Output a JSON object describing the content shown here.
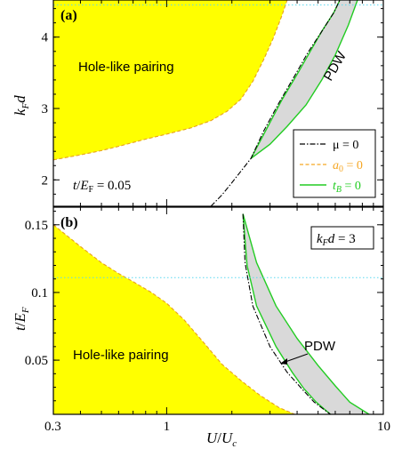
{
  "colors": {
    "hole_fill": "#ffff00",
    "hole_edge": "#e8a020",
    "pdw_fill": "#d9d9d9",
    "tB_line": "#22cc22",
    "mu_line": "#000000",
    "a0_line": "#f5a623",
    "dotted_ref": "#5ad8f0"
  },
  "chart_data": [
    {
      "type": "area",
      "panel_label": "(a)",
      "ylabel": "k_F d",
      "xlabel": "",
      "xscale": "log",
      "xlim": [
        0.3,
        10
      ],
      "ylim": [
        1.63,
        4.52
      ],
      "yticks": [
        "2",
        "3",
        "4"
      ],
      "ytick_values": [
        2,
        3,
        4
      ],
      "grid": false,
      "reference_line": {
        "y": 4.45,
        "style": "dotted"
      },
      "param_label": "t/E_F = 0.05",
      "regions": [
        {
          "name": "Hole-like pairing",
          "x": [
            0.3,
            0.4,
            0.5,
            0.6,
            0.8,
            1.0,
            1.3,
            1.6,
            1.9,
            2.2,
            2.5,
            2.8,
            3.1,
            3.4,
            3.6
          ],
          "y": [
            2.28,
            2.35,
            2.41,
            2.47,
            2.57,
            2.64,
            2.73,
            2.83,
            2.96,
            3.13,
            3.38,
            3.68,
            3.98,
            4.3,
            4.52
          ]
        },
        {
          "name": "PDW",
          "upper_x": [
            2.45,
            2.9,
            3.4,
            4.0,
            4.6,
            5.2,
            5.9,
            6.3
          ],
          "upper_y": [
            2.3,
            2.72,
            3.12,
            3.48,
            3.8,
            4.08,
            4.34,
            4.52
          ],
          "lower_x": [
            2.45,
            3.0,
            3.6,
            4.4,
            5.2,
            6.0,
            6.9,
            7.6
          ],
          "lower_y": [
            2.3,
            2.5,
            2.75,
            3.05,
            3.4,
            3.75,
            4.17,
            4.52
          ]
        }
      ],
      "series": [
        {
          "name": "μ = 0",
          "style": "dash-dot",
          "x": [
            1.6,
            1.8,
            2.0,
            2.2,
            2.45,
            2.8,
            3.3,
            3.9,
            4.5,
            5.2,
            5.9,
            6.3
          ],
          "y": [
            1.63,
            1.79,
            1.96,
            2.12,
            2.3,
            2.68,
            3.08,
            3.46,
            3.79,
            4.08,
            4.34,
            4.52
          ]
        },
        {
          "name": "a_0 = 0",
          "style": "dashed"
        },
        {
          "name": "t_B = 0",
          "style": "solid"
        }
      ],
      "annotations": [
        "Hole-like pairing",
        "PDW"
      ],
      "legend_position": "lower right"
    },
    {
      "type": "area",
      "panel_label": "(b)",
      "ylabel": "t/E_F",
      "xlabel": "U/U_c",
      "xscale": "log",
      "xlim": [
        0.3,
        10
      ],
      "ylim": [
        0.01,
        0.163
      ],
      "xticks": [
        "0.3",
        "1",
        "10"
      ],
      "xtick_values": [
        0.3,
        1,
        10
      ],
      "yticks": [
        "0.05",
        "0.1",
        "0.15"
      ],
      "ytick_values": [
        0.05,
        0.1,
        0.15
      ],
      "grid": false,
      "reference_line": {
        "y": 0.111,
        "style": "dotted"
      },
      "param_label": "k_F d = 3",
      "regions": [
        {
          "name": "Hole-like pairing",
          "x": [
            0.3,
            0.4,
            0.5,
            0.6,
            0.7,
            0.85,
            1.0,
            1.2,
            1.5,
            1.8,
            2.2,
            2.7,
            3.3,
            3.9
          ],
          "y": [
            0.15,
            0.134,
            0.122,
            0.114,
            0.108,
            0.1,
            0.092,
            0.08,
            0.062,
            0.047,
            0.035,
            0.024,
            0.015,
            0.01
          ]
        },
        {
          "name": "PDW",
          "upper_x": [
            2.25,
            2.6,
            3.2,
            4.0,
            5.0,
            6.0,
            7.0,
            8.6
          ],
          "upper_y": [
            0.158,
            0.122,
            0.09,
            0.066,
            0.046,
            0.031,
            0.019,
            0.01
          ],
          "lower_x": [
            2.25,
            2.35,
            2.6,
            3.2,
            3.8,
            4.3,
            4.9,
            5.7
          ],
          "lower_y": [
            0.158,
            0.12,
            0.09,
            0.06,
            0.041,
            0.029,
            0.019,
            0.01
          ]
        }
      ],
      "series": [
        {
          "name": "μ = 0",
          "style": "dash-dot",
          "x": [
            2.25,
            2.3,
            2.5,
            3.0,
            3.6,
            4.2,
            4.8,
            5.7
          ],
          "y": [
            0.158,
            0.122,
            0.09,
            0.06,
            0.041,
            0.029,
            0.019,
            0.01
          ]
        }
      ],
      "annotations": [
        "Hole-like pairing",
        "PDW"
      ]
    }
  ]
}
